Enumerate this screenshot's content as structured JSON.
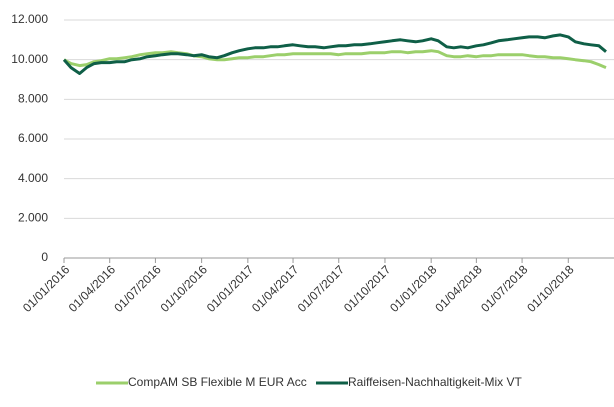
{
  "chart_data": {
    "type": "line",
    "x": [
      "01/01/2016",
      "15/01/2016",
      "01/02/2016",
      "15/02/2016",
      "01/03/2016",
      "15/03/2016",
      "01/04/2016",
      "15/04/2016",
      "01/05/2016",
      "15/05/2016",
      "01/06/2016",
      "15/06/2016",
      "01/07/2016",
      "15/07/2016",
      "01/08/2016",
      "15/08/2016",
      "01/09/2016",
      "15/09/2016",
      "01/10/2016",
      "15/10/2016",
      "01/11/2016",
      "15/11/2016",
      "01/12/2016",
      "15/12/2016",
      "01/01/2017",
      "15/01/2017",
      "01/02/2017",
      "15/02/2017",
      "01/03/2017",
      "15/03/2017",
      "01/04/2017",
      "15/04/2017",
      "01/05/2017",
      "15/05/2017",
      "01/06/2017",
      "15/06/2017",
      "01/07/2017",
      "15/07/2017",
      "01/08/2017",
      "15/08/2017",
      "01/09/2017",
      "15/09/2017",
      "01/10/2017",
      "15/10/2017",
      "01/11/2017",
      "15/11/2017",
      "01/12/2017",
      "15/12/2017",
      "01/01/2018",
      "15/01/2018",
      "01/02/2018",
      "15/02/2018",
      "01/03/2018",
      "15/03/2018",
      "01/04/2018",
      "15/04/2018",
      "01/05/2018",
      "15/05/2018",
      "01/06/2018",
      "15/06/2018",
      "01/07/2018",
      "15/07/2018",
      "01/08/2018",
      "15/08/2018",
      "01/09/2018",
      "15/09/2018",
      "01/10/2018",
      "15/10/2018",
      "01/11/2018",
      "15/11/2018",
      "01/12/2018",
      "15/12/2018"
    ],
    "series": [
      {
        "name": "CompAM SB Flexible M EUR Acc",
        "color": "#9bcf6b",
        "values": [
          10000,
          9800,
          9700,
          9750,
          9900,
          9950,
          10050,
          10050,
          10100,
          10150,
          10250,
          10300,
          10350,
          10350,
          10400,
          10350,
          10300,
          10200,
          10150,
          10050,
          10000,
          10000,
          10050,
          10100,
          10100,
          10150,
          10150,
          10200,
          10250,
          10250,
          10300,
          10300,
          10300,
          10300,
          10300,
          10300,
          10250,
          10300,
          10300,
          10300,
          10350,
          10350,
          10350,
          10400,
          10400,
          10350,
          10400,
          10400,
          10450,
          10400,
          10200,
          10150,
          10150,
          10200,
          10150,
          10200,
          10200,
          10250,
          10250,
          10250,
          10250,
          10200,
          10150,
          10150,
          10100,
          10100,
          10050,
          10000,
          9950,
          9900,
          9750,
          9600
        ]
      },
      {
        "name": "Raiffeisen-Nachhaltigkeit-Mix VT",
        "color": "#0f5f47",
        "values": [
          10000,
          9600,
          9300,
          9600,
          9800,
          9850,
          9850,
          9900,
          9900,
          10000,
          10050,
          10150,
          10200,
          10250,
          10300,
          10300,
          10250,
          10200,
          10250,
          10150,
          10100,
          10200,
          10350,
          10450,
          10550,
          10600,
          10600,
          10650,
          10650,
          10700,
          10750,
          10700,
          10650,
          10650,
          10600,
          10650,
          10700,
          10700,
          10750,
          10750,
          10800,
          10850,
          10900,
          10950,
          11000,
          10950,
          10900,
          10950,
          11050,
          10950,
          10650,
          10600,
          10650,
          10600,
          10700,
          10750,
          10850,
          10950,
          11000,
          11050,
          11100,
          11150,
          11150,
          11100,
          11200,
          11250,
          11150,
          10900,
          10800,
          10750,
          10700,
          10400
        ]
      }
    ],
    "xlim": [
      "01/01/2016",
      "31/12/2018"
    ],
    "xticks": [
      "01/01/2016",
      "01/04/2016",
      "01/07/2016",
      "01/10/2016",
      "01/01/2017",
      "01/04/2017",
      "01/07/2017",
      "01/10/2017",
      "01/01/2018",
      "01/04/2018",
      "01/07/2018",
      "01/10/2018"
    ],
    "ylim": [
      0,
      12000
    ],
    "yticks": [
      0,
      {
        "value": 2000,
        "label": "2.000"
      },
      {
        "value": 4000,
        "label": "4.000"
      },
      {
        "value": 6000,
        "label": "6.000"
      },
      {
        "value": 8000,
        "label": "8.000"
      },
      {
        "value": 10000,
        "label": "10.000"
      },
      {
        "value": 12000,
        "label": "12.000"
      }
    ],
    "grid": true,
    "legend": "bottom"
  }
}
